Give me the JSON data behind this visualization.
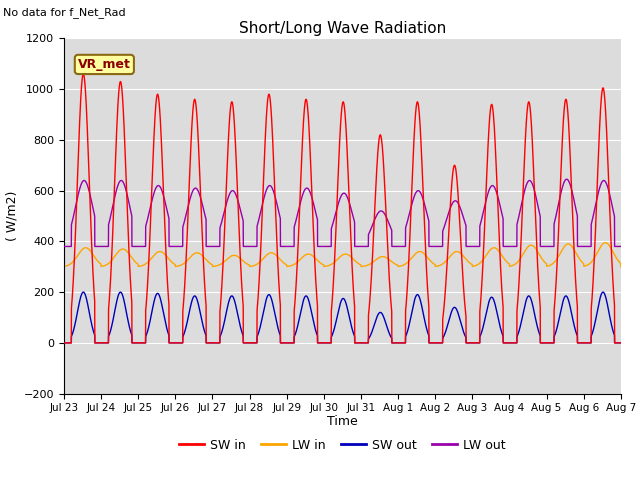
{
  "title": "Short/Long Wave Radiation",
  "ylabel": "( W/m2)",
  "xlabel": "Time",
  "ylim": [
    -200,
    1200
  ],
  "yticks": [
    -200,
    0,
    200,
    400,
    600,
    800,
    1000,
    1200
  ],
  "x_tick_labels": [
    "Jul 23",
    "Jul 24",
    "Jul 25",
    "Jul 26",
    "Jul 27",
    "Jul 28",
    "Jul 29",
    "Jul 30",
    "Jul 31",
    "Aug 1",
    "Aug 2",
    "Aug 3",
    "Aug 4",
    "Aug 5",
    "Aug 6",
    "Aug 7"
  ],
  "annotation_top_left": "No data for f_Net_Rad",
  "box_label": "VR_met",
  "colors": {
    "SW_in": "#FF0000",
    "LW_in": "#FFA500",
    "SW_out": "#0000BB",
    "LW_out": "#9900AA"
  },
  "bg_color": "#DCDCDC",
  "grid_color": "#FFFFFF",
  "n_days": 15,
  "SW_in_peaks": [
    1060,
    1030,
    980,
    960,
    950,
    980,
    960,
    950,
    820,
    950,
    700,
    940,
    950,
    960,
    1005
  ],
  "SW_out_peaks": [
    200,
    200,
    195,
    185,
    185,
    190,
    185,
    175,
    120,
    190,
    140,
    180,
    185,
    185,
    200
  ],
  "LW_out_peaks": [
    640,
    640,
    620,
    610,
    600,
    620,
    610,
    590,
    520,
    600,
    560,
    620,
    640,
    645,
    640
  ],
  "LW_in_base": 300,
  "LW_in_peaks": [
    375,
    370,
    360,
    355,
    345,
    355,
    350,
    350,
    340,
    360,
    360,
    375,
    385,
    390,
    395
  ],
  "LW_out_base": 380,
  "legend_labels": [
    "SW in",
    "LW in",
    "SW out",
    "LW out"
  ]
}
